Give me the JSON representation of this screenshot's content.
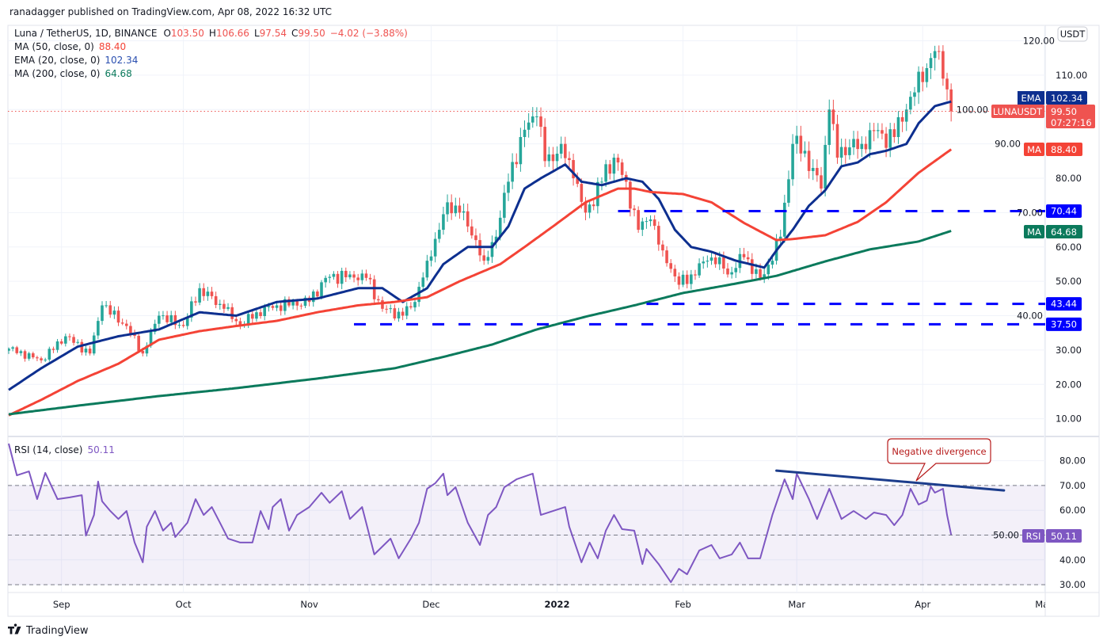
{
  "header": {
    "published": "ranadagger published on TradingView.com, Apr 08, 2022 16:32 UTC",
    "symbol": "Luna / TetherUS, 1D, BINANCE",
    "o_label": "O",
    "o": "103.50",
    "h_label": "H",
    "h": "106.66",
    "l_label": "L",
    "l": "97.54",
    "c_label": "C",
    "c": "99.50",
    "change": "−4.02 (−3.88%)"
  },
  "indicators": {
    "ma50": {
      "label": "MA (50, close, 0)",
      "value": "88.40",
      "tag": "MA"
    },
    "ema20": {
      "label": "EMA (20, close, 0)",
      "value": "102.34",
      "tag": "EMA"
    },
    "ma200": {
      "label": "MA (200, close, 0)",
      "value": "64.68",
      "tag": "MA"
    },
    "rsi": {
      "label": "RSI (14, close)",
      "value": "50.11",
      "tag": "RSI"
    }
  },
  "price_tag": {
    "symbol": "LUNAUSDT",
    "price": "99.50",
    "countdown": "07:27:16"
  },
  "currency": "USDT",
  "levels": [
    {
      "value": 70.44,
      "label": "70.44",
      "start_day": 150
    },
    {
      "value": 43.44,
      "label": "43.44",
      "start_day": 157
    },
    {
      "value": 37.5,
      "label": "37.50",
      "start_day": 85
    }
  ],
  "annotation": {
    "text": "Negative divergence",
    "trendline": [
      [
        189,
        76.0
      ],
      [
        245,
        68.0
      ]
    ]
  },
  "footer": {
    "brand": "TradingView"
  },
  "colors": {
    "up": "#26a69a",
    "down": "#ef5350",
    "ema": "#0d2f8f",
    "ma50": "#f44336",
    "ma200": "#0b7a5c",
    "rsi": "#7e57c2",
    "level": "#0000ff"
  },
  "chart_data": [
    {
      "type": "candlestick",
      "title": "Luna / TetherUS, 1D, BINANCE",
      "x_unit": "day index (0 = Aug 19, 2021)",
      "ylim": [
        4,
        124
      ],
      "y_ticks": [
        "120.00",
        "110.00",
        "100.00",
        "90.00",
        "80.00",
        "70.00",
        "60.00",
        "50.00",
        "40.00",
        "30.00",
        "20.00",
        "10.00"
      ],
      "y_tick_values": [
        120,
        110,
        100,
        90,
        80,
        70,
        60,
        50,
        40,
        30,
        20,
        10
      ],
      "x_ticks": [
        {
          "day": 13,
          "label": "Sep"
        },
        {
          "day": 43,
          "label": "Oct"
        },
        {
          "day": 74,
          "label": "Nov"
        },
        {
          "day": 104,
          "label": "Dec"
        },
        {
          "day": 135,
          "label": "2022"
        },
        {
          "day": 166,
          "label": "Feb"
        },
        {
          "day": 194,
          "label": "Mar"
        },
        {
          "day": 225,
          "label": "Apr"
        },
        {
          "day": 255,
          "label": "May"
        }
      ],
      "last_day": 232,
      "close_keypoints": [
        [
          0,
          30.4
        ],
        [
          8,
          27
        ],
        [
          14,
          34
        ],
        [
          20,
          29
        ],
        [
          23,
          43
        ],
        [
          29,
          37
        ],
        [
          33,
          29
        ],
        [
          37,
          40
        ],
        [
          43,
          37
        ],
        [
          47,
          48
        ],
        [
          53,
          42
        ],
        [
          57,
          37
        ],
        [
          61,
          41
        ],
        [
          66,
          43
        ],
        [
          74,
          44
        ],
        [
          78,
          51
        ],
        [
          84,
          52
        ],
        [
          88,
          51
        ],
        [
          92,
          42
        ],
        [
          97,
          40
        ],
        [
          100,
          44
        ],
        [
          103,
          56
        ],
        [
          106,
          65
        ],
        [
          108,
          73
        ],
        [
          111,
          70
        ],
        [
          115,
          62
        ],
        [
          117,
          56
        ],
        [
          120,
          63
        ],
        [
          123,
          79
        ],
        [
          126,
          92
        ],
        [
          129,
          98
        ],
        [
          130,
          98
        ],
        [
          132,
          85
        ],
        [
          134,
          85
        ],
        [
          136,
          90
        ],
        [
          139,
          80
        ],
        [
          142,
          70
        ],
        [
          146,
          79
        ],
        [
          149,
          86
        ],
        [
          152,
          79
        ],
        [
          155,
          65
        ],
        [
          158,
          68
        ],
        [
          161,
          59
        ],
        [
          165,
          49
        ],
        [
          168,
          52
        ],
        [
          172,
          56
        ],
        [
          175,
          57
        ],
        [
          177,
          52
        ],
        [
          181,
          57
        ],
        [
          185,
          51
        ],
        [
          188,
          56
        ],
        [
          190,
          63
        ],
        [
          193,
          90
        ],
        [
          196,
          88
        ],
        [
          198,
          83
        ],
        [
          200,
          77
        ],
        [
          202,
          100
        ],
        [
          204,
          86
        ],
        [
          207,
          89
        ],
        [
          210,
          90
        ],
        [
          212,
          94
        ],
        [
          215,
          93
        ],
        [
          218,
          92
        ],
        [
          221,
          100
        ],
        [
          223,
          105
        ],
        [
          225,
          108
        ],
        [
          227,
          115
        ],
        [
          229,
          117
        ],
        [
          230,
          109
        ],
        [
          232,
          99.5
        ]
      ],
      "series": [
        {
          "name": "EMA (20, close, 0)",
          "points": [
            [
              0,
              18.4
            ],
            [
              8,
              24.7
            ],
            [
              17,
              31
            ],
            [
              27,
              34
            ],
            [
              37,
              36
            ],
            [
              47,
              41
            ],
            [
              56,
              40
            ],
            [
              66,
              44
            ],
            [
              76,
              45
            ],
            [
              86,
              48
            ],
            [
              92,
              48
            ],
            [
              97,
              44
            ],
            [
              103,
              48
            ],
            [
              107,
              55
            ],
            [
              113,
              60
            ],
            [
              119,
              60
            ],
            [
              123,
              66
            ],
            [
              127,
              77
            ],
            [
              131,
              80
            ],
            [
              134,
              82
            ],
            [
              137,
              84
            ],
            [
              141,
              79
            ],
            [
              146,
              78
            ],
            [
              152,
              80
            ],
            [
              156,
              79
            ],
            [
              160,
              74
            ],
            [
              164,
              65
            ],
            [
              168,
              60
            ],
            [
              173,
              58.6
            ],
            [
              179,
              56
            ],
            [
              186,
              54
            ],
            [
              189,
              59
            ],
            [
              193,
              65
            ],
            [
              197,
              72
            ],
            [
              201,
              76.5
            ],
            [
              205,
              83.5
            ],
            [
              209,
              84.6
            ],
            [
              212,
              87
            ],
            [
              216,
              88
            ],
            [
              221,
              90
            ],
            [
              224,
              96
            ],
            [
              228,
              101
            ],
            [
              232,
              102.34
            ]
          ]
        },
        {
          "name": "MA (50, close, 0)",
          "points": [
            [
              0,
              11
            ],
            [
              8,
              15.5
            ],
            [
              17,
              21
            ],
            [
              27,
              26
            ],
            [
              37,
              33
            ],
            [
              47,
              35.5
            ],
            [
              56,
              37
            ],
            [
              66,
              38.5
            ],
            [
              76,
              41
            ],
            [
              86,
              43
            ],
            [
              95,
              44
            ],
            [
              103,
              45.4
            ],
            [
              111,
              50
            ],
            [
              121,
              55
            ],
            [
              127,
              60
            ],
            [
              134,
              66
            ],
            [
              142,
              73
            ],
            [
              150,
              77
            ],
            [
              154,
              77
            ],
            [
              158,
              76
            ],
            [
              166,
              75.4
            ],
            [
              173,
              73
            ],
            [
              181,
              67
            ],
            [
              189,
              62
            ],
            [
              193,
              62.3
            ],
            [
              201,
              63.4
            ],
            [
              209,
              67.3
            ],
            [
              216,
              73
            ],
            [
              224,
              81.6
            ],
            [
              232,
              88.4
            ]
          ]
        },
        {
          "name": "MA (200, close, 0)",
          "points": [
            [
              0,
              11.3
            ],
            [
              17,
              13.8
            ],
            [
              37,
              16.6
            ],
            [
              56,
              18.9
            ],
            [
              76,
              21.7
            ],
            [
              95,
              24.7
            ],
            [
              107,
              28
            ],
            [
              119,
              31.6
            ],
            [
              130,
              36
            ],
            [
              142,
              39.7
            ],
            [
              154,
              43
            ],
            [
              166,
              46.6
            ],
            [
              177,
              48.9
            ],
            [
              189,
              51.6
            ],
            [
              201,
              55.8
            ],
            [
              212,
              59.3
            ],
            [
              224,
              61.6
            ],
            [
              232,
              64.68
            ]
          ]
        }
      ]
    },
    {
      "type": "line",
      "title": "RSI (14, close)",
      "ylim": [
        28,
        88
      ],
      "y_ticks": [
        "80.00",
        "70.00",
        "60.00",
        "50.00",
        "40.00",
        "30.00"
      ],
      "y_tick_values": [
        80,
        70,
        60,
        50,
        40,
        30
      ],
      "band": [
        30,
        70
      ],
      "midline": 50,
      "points": [
        [
          0,
          86.9
        ],
        [
          2,
          74.1
        ],
        [
          5,
          75.7
        ],
        [
          7,
          64.5
        ],
        [
          9,
          75.1
        ],
        [
          12,
          64.5
        ],
        [
          15,
          65.2
        ],
        [
          18,
          66.1
        ],
        [
          19,
          49.8
        ],
        [
          21,
          58.1
        ],
        [
          22,
          71.6
        ],
        [
          23,
          63.6
        ],
        [
          25,
          59.7
        ],
        [
          27,
          56.5
        ],
        [
          29,
          59.7
        ],
        [
          31,
          47.0
        ],
        [
          33,
          39.0
        ],
        [
          34,
          53.4
        ],
        [
          36,
          59.7
        ],
        [
          38,
          51.8
        ],
        [
          40,
          55.0
        ],
        [
          41,
          49.2
        ],
        [
          44,
          55.0
        ],
        [
          46,
          64.5
        ],
        [
          48,
          58.1
        ],
        [
          50,
          61.3
        ],
        [
          52,
          55.0
        ],
        [
          54,
          48.6
        ],
        [
          57,
          47.0
        ],
        [
          60,
          47.0
        ],
        [
          62,
          59.7
        ],
        [
          64,
          52.4
        ],
        [
          65,
          61.3
        ],
        [
          67,
          64.5
        ],
        [
          69,
          51.8
        ],
        [
          71,
          58.1
        ],
        [
          74,
          61.3
        ],
        [
          77,
          67.1
        ],
        [
          79,
          63.0
        ],
        [
          82,
          67.7
        ],
        [
          84,
          56.5
        ],
        [
          87,
          61.3
        ],
        [
          90,
          42.2
        ],
        [
          94,
          48.6
        ],
        [
          96,
          40.6
        ],
        [
          99,
          48.6
        ],
        [
          101,
          55.0
        ],
        [
          103,
          68.7
        ],
        [
          105,
          70.9
        ],
        [
          107,
          74.8
        ],
        [
          108,
          66.1
        ],
        [
          110,
          69.3
        ],
        [
          113,
          55.0
        ],
        [
          116,
          46.0
        ],
        [
          118,
          58.1
        ],
        [
          120,
          61.3
        ],
        [
          122,
          69.3
        ],
        [
          125,
          72.5
        ],
        [
          129,
          74.8
        ],
        [
          131,
          58.1
        ],
        [
          134,
          59.7
        ],
        [
          137,
          61.3
        ],
        [
          138,
          53.4
        ],
        [
          141,
          39.0
        ],
        [
          143,
          47.0
        ],
        [
          145,
          40.6
        ],
        [
          147,
          51.8
        ],
        [
          149,
          58.1
        ],
        [
          151,
          52.4
        ],
        [
          154,
          51.8
        ],
        [
          156,
          38.3
        ],
        [
          157,
          44.4
        ],
        [
          160,
          38.3
        ],
        [
          163,
          31.0
        ],
        [
          165,
          36.4
        ],
        [
          167,
          34.2
        ],
        [
          170,
          43.8
        ],
        [
          173,
          46.0
        ],
        [
          175,
          40.6
        ],
        [
          178,
          42.2
        ],
        [
          180,
          47.0
        ],
        [
          182,
          40.6
        ],
        [
          185,
          40.6
        ],
        [
          188,
          58.1
        ],
        [
          191,
          72.5
        ],
        [
          193,
          64.5
        ],
        [
          194,
          74.8
        ],
        [
          197,
          64.5
        ],
        [
          199,
          56.5
        ],
        [
          202,
          68.7
        ],
        [
          205,
          56.5
        ],
        [
          208,
          59.7
        ],
        [
          211,
          56.5
        ],
        [
          213,
          59.1
        ],
        [
          216,
          58.1
        ],
        [
          218,
          54.0
        ],
        [
          220,
          58.1
        ],
        [
          222,
          68.7
        ],
        [
          224,
          62.3
        ],
        [
          226,
          63.9
        ],
        [
          227,
          69.6
        ],
        [
          228,
          67.1
        ],
        [
          230,
          68.7
        ],
        [
          231,
          58.1
        ],
        [
          232,
          50.11
        ]
      ]
    }
  ]
}
